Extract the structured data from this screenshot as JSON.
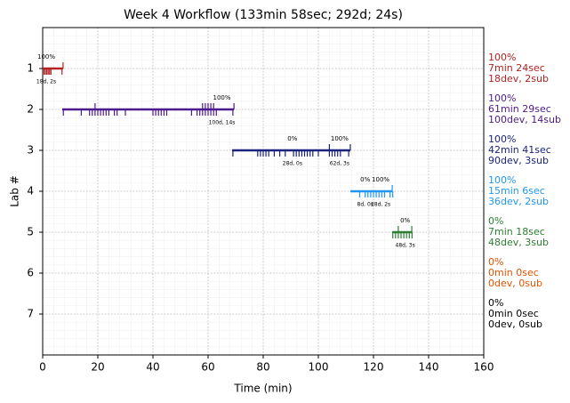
{
  "chart_data": {
    "type": "timeline",
    "title": "Week 4 Workflow (133min 58sec; 292d; 24s)",
    "x_label": "Time (min)",
    "y_label": "Lab #",
    "xlim": [
      0,
      160
    ],
    "xticks": [
      0,
      20,
      40,
      60,
      80,
      100,
      120,
      140,
      160
    ],
    "ylim": [
      8,
      0
    ],
    "yticks": [
      1,
      2,
      3,
      4,
      5,
      6,
      7
    ],
    "grid": true,
    "minor_grid": true,
    "series": [
      {
        "lab": 1,
        "color": "#b22222",
        "start": 0,
        "end": 7.4,
        "events": [
          0.5,
          1,
          1.5,
          2,
          2.5,
          3,
          7
        ],
        "up_events": [
          7.4
        ],
        "annotations": [
          {
            "x": 1.3,
            "label": "100%",
            "sublabel": "18d, 2s"
          }
        ],
        "summary": [
          "100%",
          "7min 24sec",
          "18dev, 2sub"
        ]
      },
      {
        "lab": 2,
        "color": "#4b1a8c",
        "start": 7.1,
        "end": 69.4,
        "events": [
          7.5,
          14,
          17,
          18,
          19,
          20,
          21,
          22,
          23,
          24,
          26,
          27,
          30,
          40,
          41,
          42,
          43,
          44,
          45,
          54,
          56,
          57,
          58,
          59,
          60,
          61,
          62,
          63,
          69
        ],
        "up_events": [
          19,
          58,
          59,
          60,
          61,
          62,
          69.4
        ],
        "annotations": [
          {
            "x": 65,
            "label": "100%",
            "sublabel": "100d, 14s"
          }
        ],
        "summary": [
          "100%",
          "61min 29sec",
          "100dev, 14sub"
        ]
      },
      {
        "lab": 3,
        "color": "#1a237e",
        "start": 68.7,
        "end": 111.6,
        "events": [
          69,
          78,
          79,
          80,
          81,
          82,
          84,
          86,
          88,
          91,
          92,
          93,
          94,
          95,
          96,
          97,
          98,
          100,
          104,
          105,
          106,
          107,
          108,
          111
        ],
        "up_events": [
          104,
          111.6
        ],
        "annotations": [
          {
            "x": 90.6,
            "label": "0%",
            "sublabel": "28d, 0s"
          },
          {
            "x": 107.7,
            "label": "100%",
            "sublabel": "62d, 3s"
          }
        ],
        "summary": [
          "100%",
          "42min 41sec",
          "90dev, 3sub"
        ]
      },
      {
        "lab": 4,
        "color": "#2196f3",
        "start": 111.6,
        "end": 126.8,
        "events": [
          115,
          117,
          118,
          119,
          120,
          121,
          122,
          123,
          124,
          126,
          127
        ],
        "up_events": [
          126.8
        ],
        "annotations": [
          {
            "x": 117,
            "label": "0%",
            "sublabel": "8d, 0s"
          },
          {
            "x": 122.6,
            "label": "100%",
            "sublabel": "28d, 2s"
          }
        ],
        "summary": [
          "100%",
          "15min 6sec",
          "36dev, 2sub"
        ]
      },
      {
        "lab": 5,
        "color": "#2e7d32",
        "start": 126.8,
        "end": 133.9,
        "events": [
          127,
          128,
          129,
          130,
          131,
          132,
          133,
          134
        ],
        "up_events": [
          129,
          133.9
        ],
        "annotations": [
          {
            "x": 131.5,
            "label": "0%",
            "sublabel": "48d, 3s"
          }
        ],
        "summary": [
          "0%",
          "7min 18sec",
          "48dev, 3sub"
        ]
      },
      {
        "lab": 6,
        "color": "#e65100",
        "summary": [
          "0%",
          "0min 0sec",
          "0dev, 0sub"
        ]
      },
      {
        "lab": 7,
        "color": "#000000",
        "summary": [
          "0%",
          "0min 0sec",
          "0dev, 0sub"
        ]
      }
    ]
  }
}
